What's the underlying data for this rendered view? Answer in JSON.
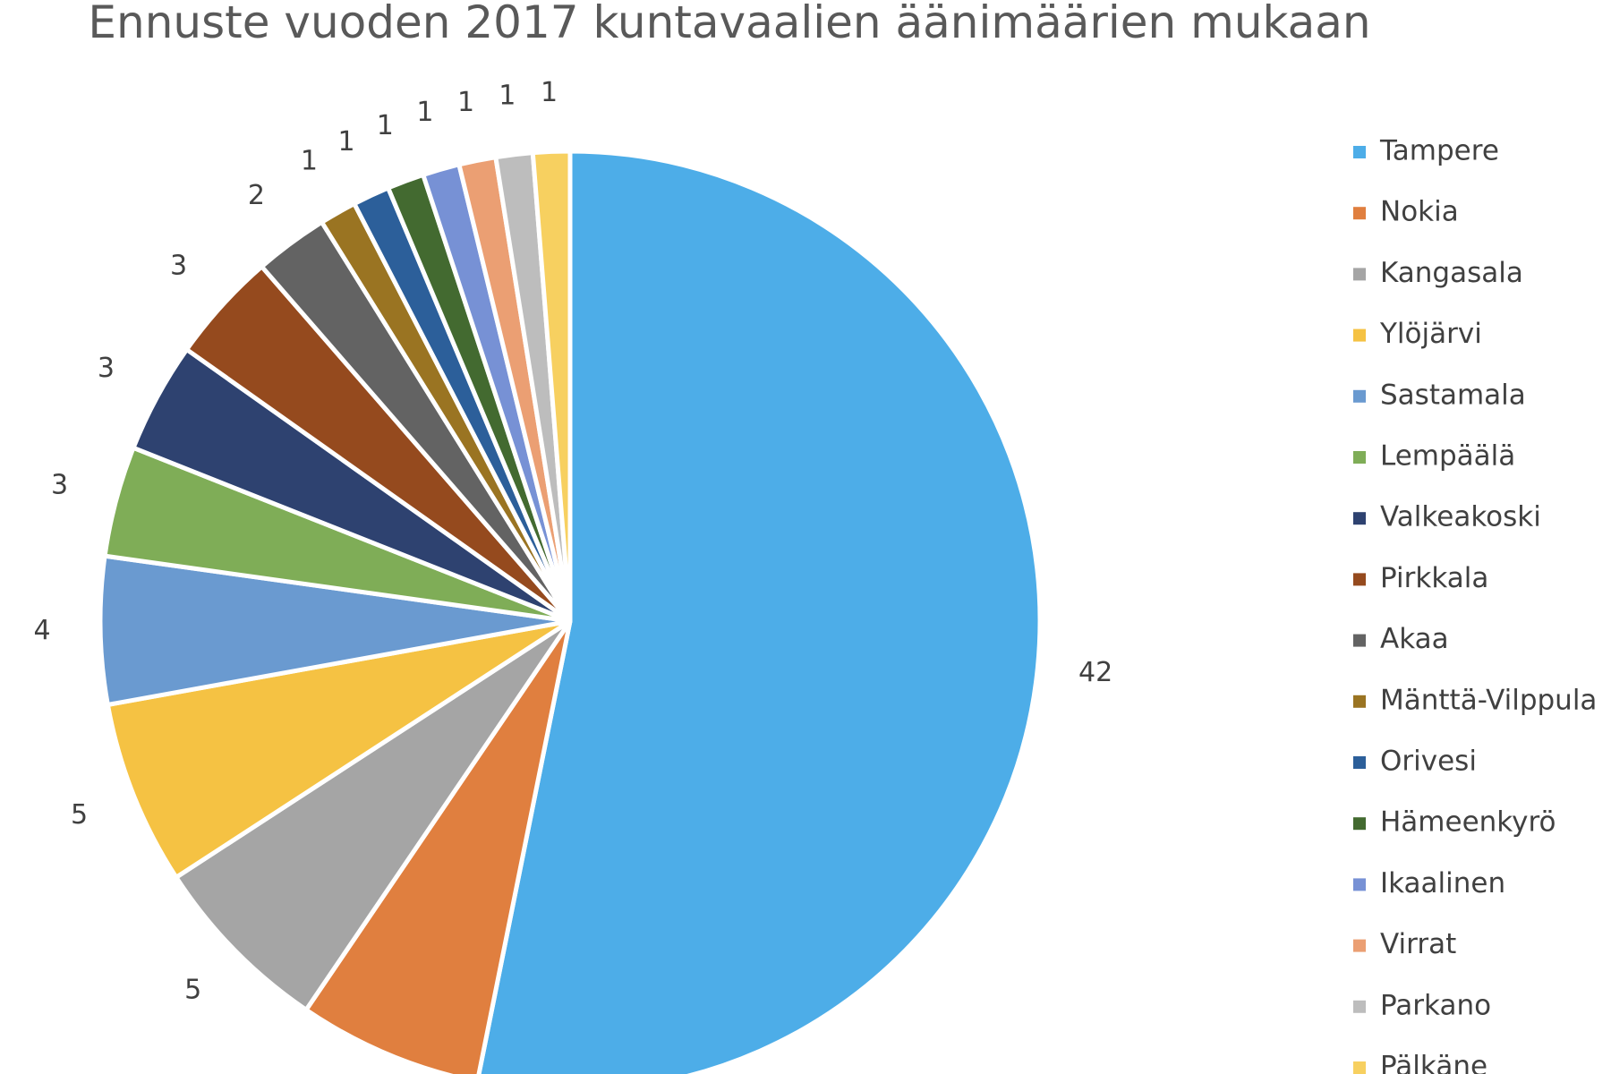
{
  "chart_data": {
    "type": "pie",
    "title": "Ennuste vuoden 2017 kuntavaalien äänimäärien mukaan",
    "categories": [
      "Tampere",
      "Nokia",
      "Kangasala",
      "Ylöjärvi",
      "Sastamala",
      "Lempäälä",
      "Valkeakoski",
      "Pirkkala",
      "Akaa",
      "Mänttä-Vilppula",
      "Orivesi",
      "Hämeenkyrö",
      "Ikaalinen",
      "Virrat",
      "Parkano",
      "Pälkäne"
    ],
    "values": [
      42,
      5,
      5,
      5,
      4,
      3,
      3,
      3,
      2,
      1,
      1,
      1,
      1,
      1,
      1,
      1
    ],
    "data_labels": [
      "42",
      "",
      "5",
      "5",
      "4",
      "3",
      "3",
      "3",
      "2",
      "1",
      "1",
      "1",
      "1",
      "1",
      "1",
      "1"
    ],
    "colors": [
      "#4DADE8",
      "#E07F3F",
      "#A5A5A5",
      "#F5C243",
      "#6A9AD0",
      "#7FAD57",
      "#2E4270",
      "#954A1E",
      "#636363",
      "#9A7422",
      "#2C5F9A",
      "#436A30",
      "#7791D5",
      "#EB9F73",
      "#BDBDBD",
      "#F7D060"
    ],
    "legend_position": "right",
    "start_angle": "12 o'clock",
    "direction": "clockwise"
  }
}
